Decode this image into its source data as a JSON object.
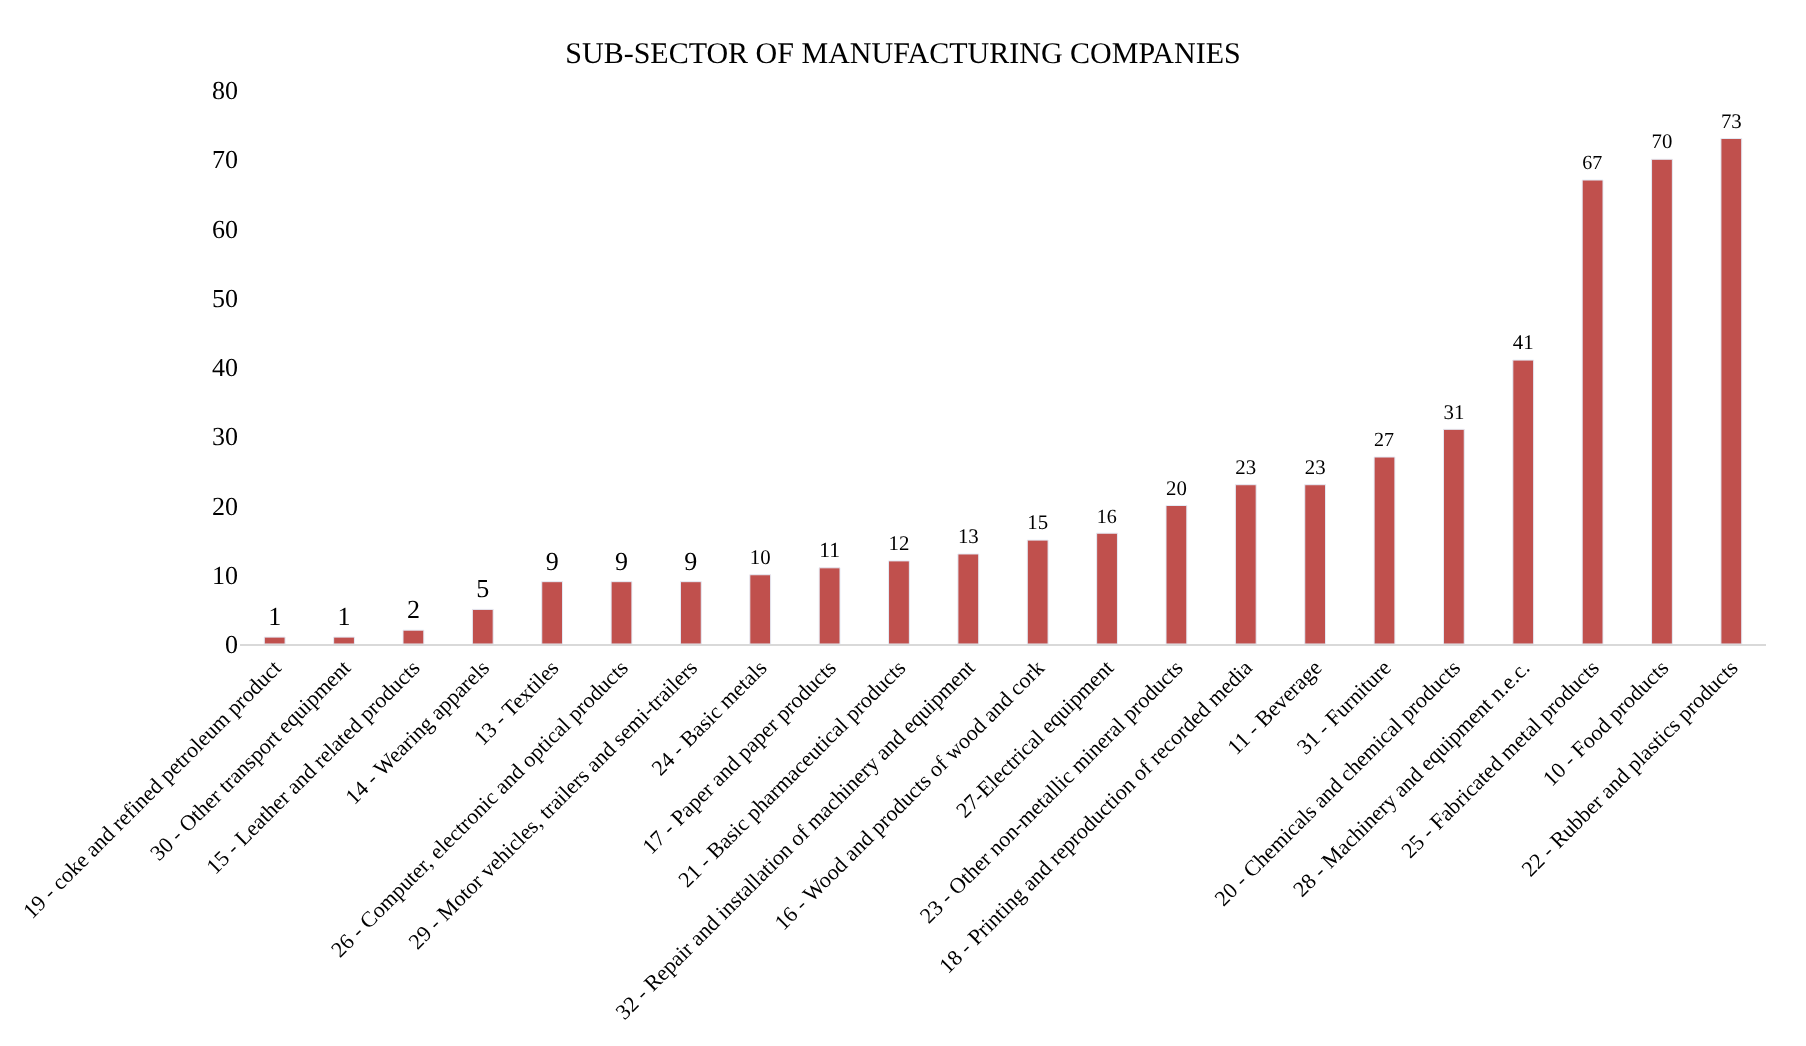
{
  "chart_data": {
    "type": "bar",
    "title": "SUB-SECTOR OF MANUFACTURING COMPANIES",
    "categories": [
      "19 - coke and refined petroleum product",
      "30 - Other transport equipment",
      "15 - Leather and related products",
      "14 - Wearing apparels",
      "13 - Textiles",
      "26 - Computer, electronic and optical products",
      "29 - Motor vehicles, trailers and semi-trailers",
      "24 - Basic metals",
      "17 - Paper and paper products",
      "21 - Basic pharmaceutical products",
      "32 - Repair and installation of machinery and equipment",
      "16 - Wood and products of wood and cork",
      "27-Electrical equipment",
      "23 - Other non-metallic mineral products",
      "18 - Printing and reproduction of recorded media",
      "11 - Beverage",
      "31 - Furniture",
      "20 - Chemicals and chemical products",
      "28 - Machinery and equipment n.e.c.",
      "25 - Fabricated metal products",
      "10 - Food products",
      "22 - Rubber and plastics products"
    ],
    "values": [
      1,
      1,
      2,
      5,
      9,
      9,
      9,
      10,
      11,
      12,
      13,
      15,
      16,
      20,
      23,
      23,
      27,
      31,
      41,
      67,
      70,
      73
    ],
    "color": "#c0504d",
    "data_labels": true,
    "ylim": [
      0,
      80
    ],
    "yticks": [
      0,
      10,
      20,
      30,
      40,
      50,
      60,
      70,
      80
    ],
    "grid": false,
    "legend": false
  }
}
